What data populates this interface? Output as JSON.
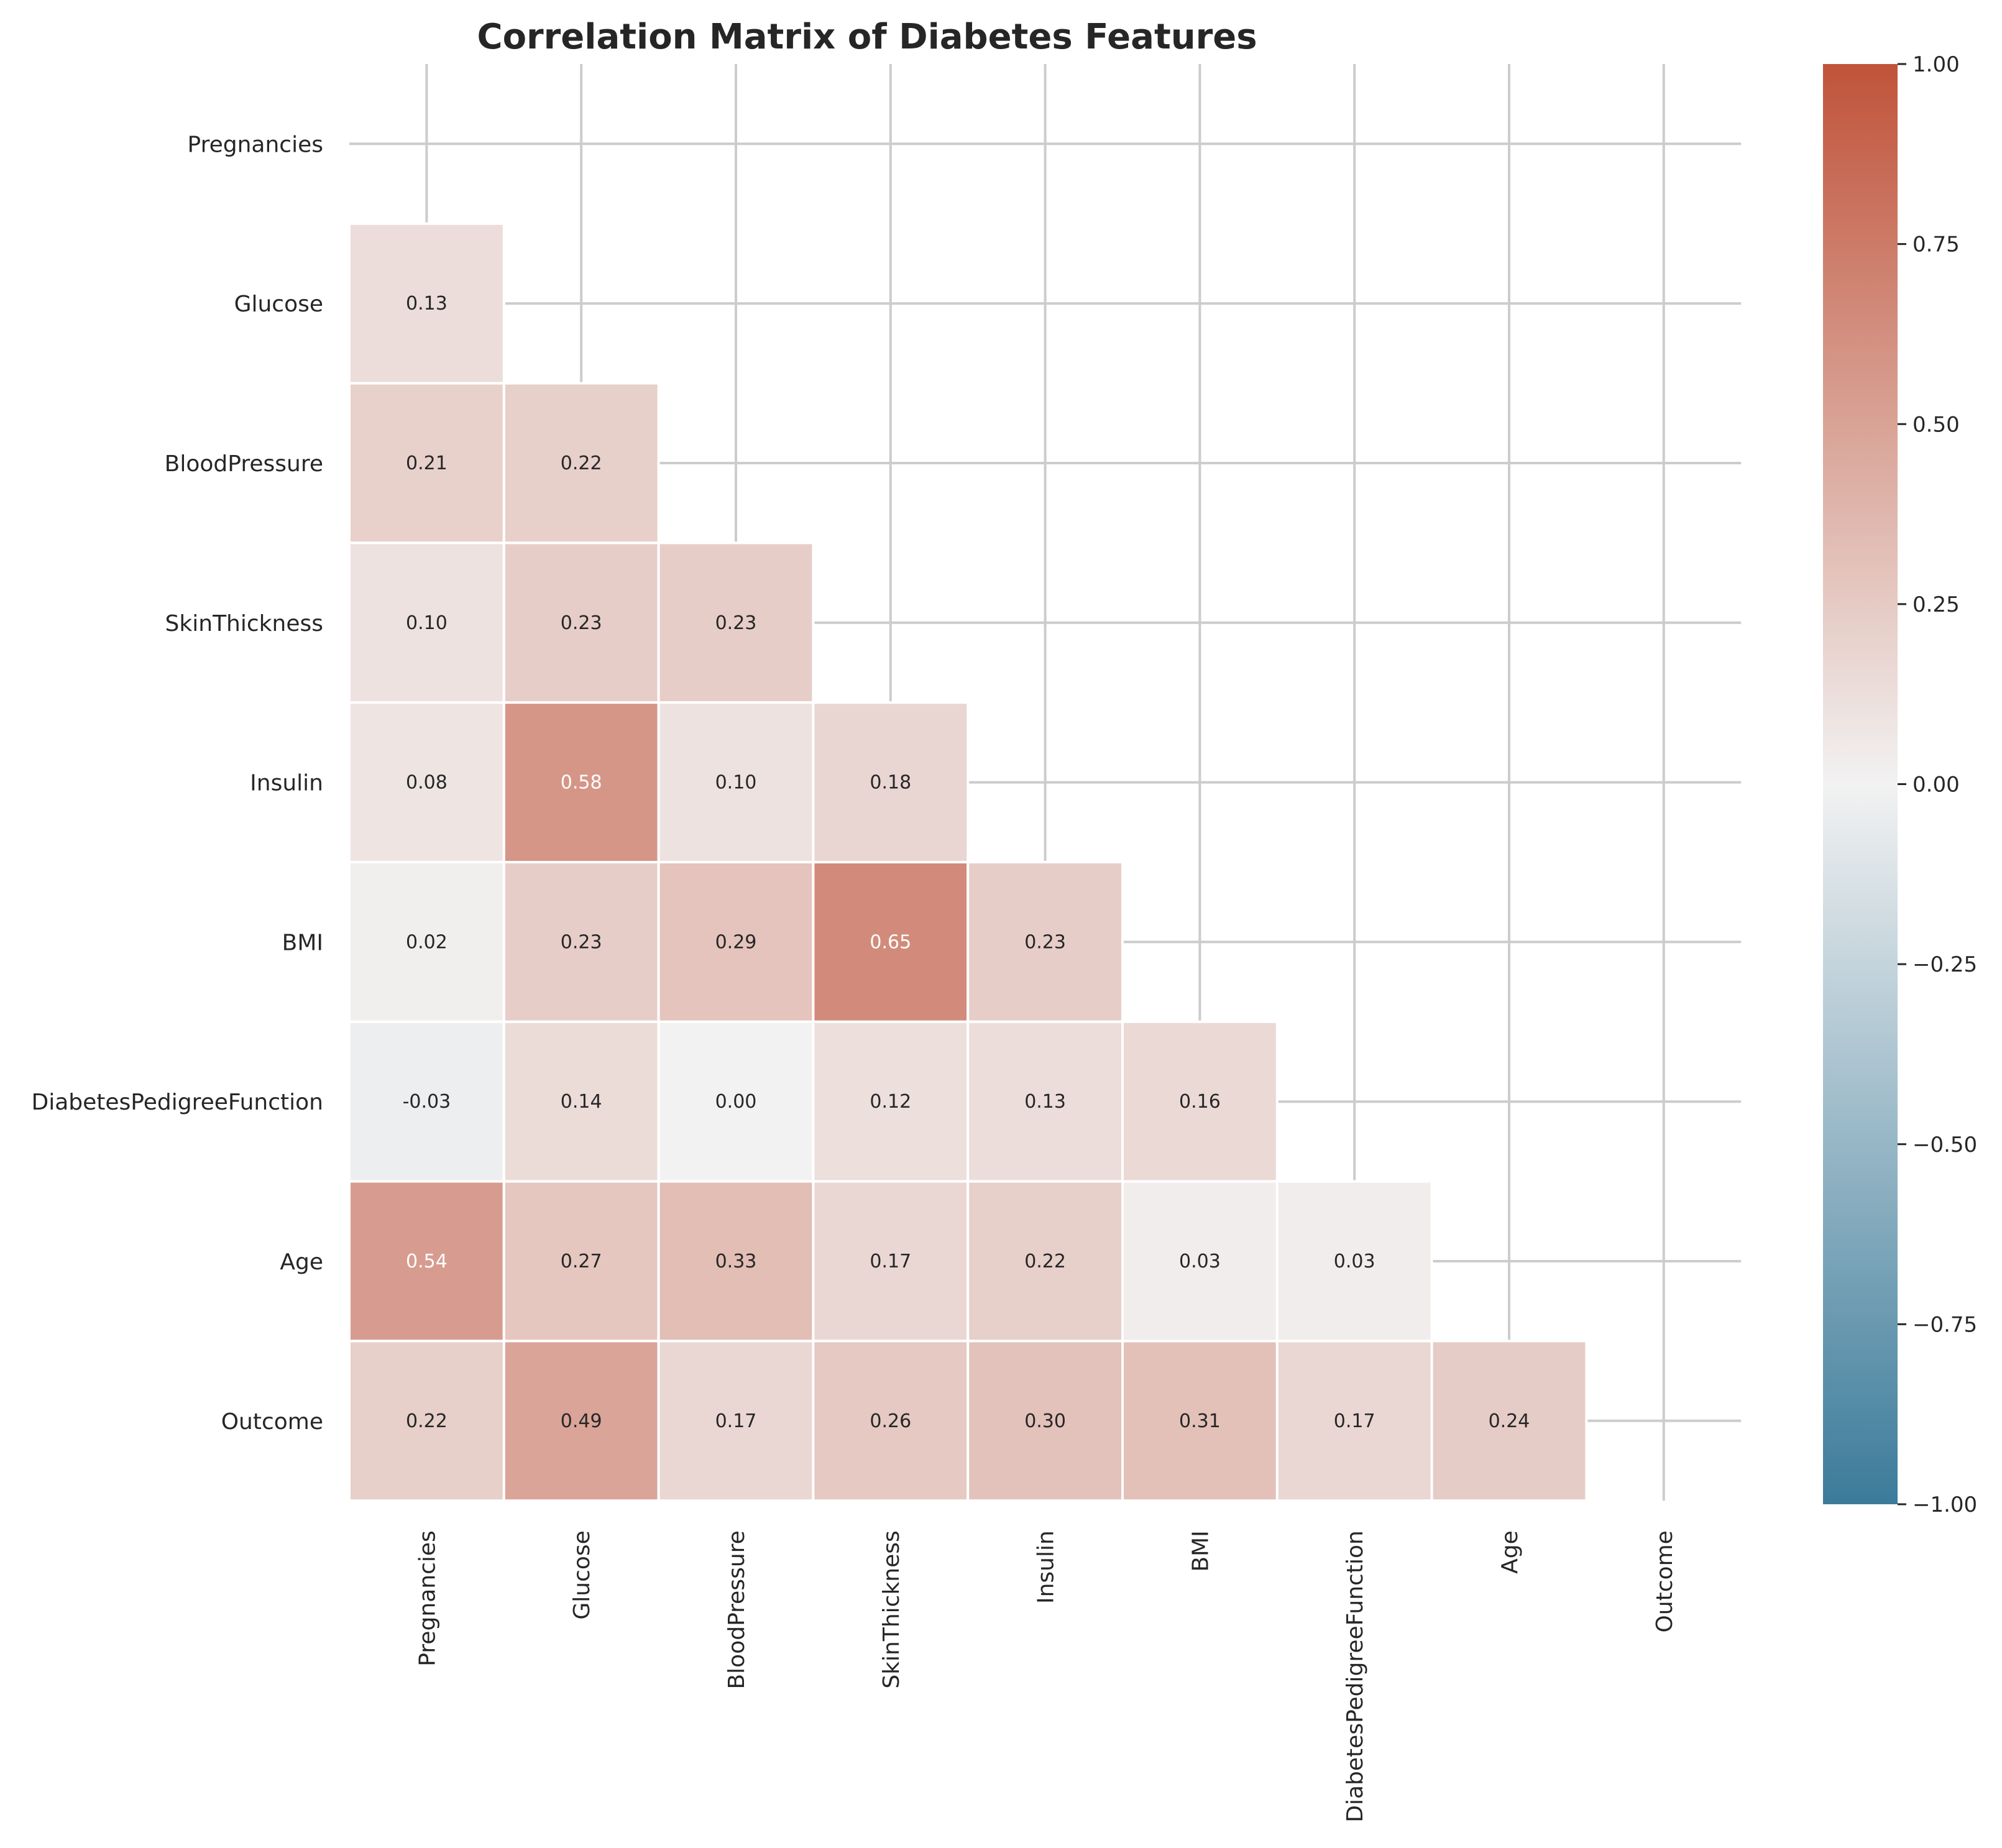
{
  "chart_data": {
    "type": "heatmap",
    "title": "Correlation Matrix of Diabetes Features",
    "xlabel": "",
    "ylabel": "",
    "features": [
      "Pregnancies",
      "Glucose",
      "BloodPressure",
      "SkinThickness",
      "Insulin",
      "BMI",
      "DiabetesPedigreeFunction",
      "Age",
      "Outcome"
    ],
    "mask": "upper-triangle-including-diagonal",
    "grid": true,
    "value_format": "2 decimals",
    "matrix": [
      [
        null,
        null,
        null,
        null,
        null,
        null,
        null,
        null,
        null
      ],
      [
        0.13,
        null,
        null,
        null,
        null,
        null,
        null,
        null,
        null
      ],
      [
        0.21,
        0.22,
        null,
        null,
        null,
        null,
        null,
        null,
        null
      ],
      [
        0.1,
        0.23,
        0.23,
        null,
        null,
        null,
        null,
        null,
        null
      ],
      [
        0.08,
        0.58,
        0.1,
        0.18,
        null,
        null,
        null,
        null,
        null
      ],
      [
        0.02,
        0.23,
        0.29,
        0.65,
        0.23,
        null,
        null,
        null,
        null
      ],
      [
        -0.03,
        0.14,
        -0.0,
        0.12,
        0.13,
        0.16,
        null,
        null,
        null
      ],
      [
        0.54,
        0.27,
        0.33,
        0.17,
        0.22,
        0.03,
        0.03,
        null,
        null
      ],
      [
        0.22,
        0.49,
        0.17,
        0.26,
        0.3,
        0.31,
        0.17,
        0.24,
        null
      ]
    ],
    "colorbar": {
      "range": [
        -1.0,
        1.0
      ],
      "ticks": [
        "1.00",
        "0.75",
        "0.50",
        "0.25",
        "0.00",
        "−0.25",
        "−0.50",
        "−0.75",
        "−1.00"
      ],
      "tick_values": [
        1.0,
        0.75,
        0.5,
        0.25,
        0.0,
        -0.25,
        -0.5,
        -0.75,
        -1.0
      ],
      "colors": {
        "negative": "#3b7b9a",
        "zero": "#f2f2f2",
        "positive": "#c0533a"
      }
    },
    "placement": "colorbar-right"
  }
}
